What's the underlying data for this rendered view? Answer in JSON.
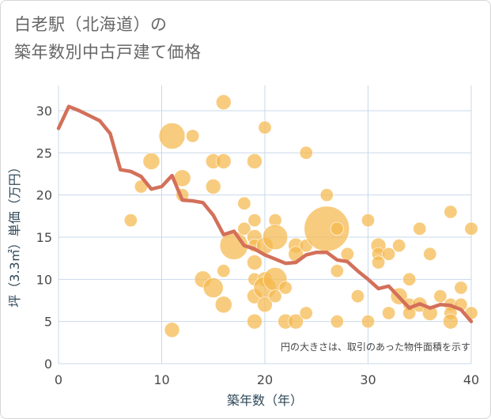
{
  "title_line1": "白老駅（北海道）の",
  "title_line2": "築年数別中古戸建て価格",
  "chart_data": {
    "type": "scatter",
    "title": "白老駅（北海道）の築年数別中古戸建て価格",
    "xlabel": "築年数（年）",
    "ylabel": "坪（3.3㎡）単価（万円）",
    "xlim": [
      0,
      40
    ],
    "ylim": [
      0,
      33
    ],
    "xticks": [
      0,
      10,
      20,
      30,
      40
    ],
    "yticks": [
      0,
      5,
      10,
      15,
      20,
      25,
      30
    ],
    "grid": true,
    "annotation": "円の大きさは、取引のあった物件面積を示す",
    "colors": {
      "bubble": "#f5b94d",
      "line": "#d3705a",
      "grid": "#c9d9ea"
    },
    "series": [
      {
        "name": "trend",
        "type": "line",
        "x": [
          0,
          1,
          2,
          3,
          4,
          5,
          6,
          7,
          8,
          9,
          10,
          11,
          12,
          13,
          14,
          15,
          16,
          17,
          18,
          19,
          20,
          21,
          22,
          23,
          24,
          25,
          26,
          27,
          28,
          29,
          30,
          31,
          32,
          33,
          34,
          35,
          36,
          37,
          38,
          39,
          40
        ],
        "y": [
          27.9,
          30.5,
          30.0,
          29.4,
          28.8,
          27.3,
          23.0,
          22.8,
          22.2,
          20.7,
          21.0,
          22.3,
          19.4,
          19.3,
          19.1,
          17.6,
          15.3,
          15.7,
          14.0,
          13.6,
          12.9,
          12.4,
          11.9,
          12.0,
          12.9,
          13.2,
          13.2,
          12.3,
          12.1,
          11.0,
          10.0,
          8.9,
          9.2,
          7.9,
          6.6,
          7.1,
          6.6,
          7.0,
          6.9,
          6.4,
          5.0
        ]
      },
      {
        "name": "transactions",
        "type": "scatter",
        "points": [
          {
            "x": 7,
            "y": 17,
            "s": 3
          },
          {
            "x": 8,
            "y": 21,
            "s": 3
          },
          {
            "x": 9,
            "y": 24,
            "s": 5
          },
          {
            "x": 11,
            "y": 27,
            "s": 12
          },
          {
            "x": 11,
            "y": 4,
            "s": 4
          },
          {
            "x": 12,
            "y": 22,
            "s": 5
          },
          {
            "x": 12,
            "y": 20,
            "s": 3
          },
          {
            "x": 13,
            "y": 27,
            "s": 3
          },
          {
            "x": 14,
            "y": 10,
            "s": 5
          },
          {
            "x": 15,
            "y": 24,
            "s": 4
          },
          {
            "x": 15,
            "y": 21,
            "s": 4
          },
          {
            "x": 15,
            "y": 9,
            "s": 7
          },
          {
            "x": 16,
            "y": 31,
            "s": 4
          },
          {
            "x": 16,
            "y": 24,
            "s": 4
          },
          {
            "x": 16,
            "y": 11,
            "s": 3
          },
          {
            "x": 16,
            "y": 7,
            "s": 5
          },
          {
            "x": 17,
            "y": 14,
            "s": 14
          },
          {
            "x": 18,
            "y": 19,
            "s": 3
          },
          {
            "x": 18,
            "y": 16,
            "s": 3
          },
          {
            "x": 19,
            "y": 24,
            "s": 4
          },
          {
            "x": 19,
            "y": 17,
            "s": 3
          },
          {
            "x": 19,
            "y": 15,
            "s": 4
          },
          {
            "x": 19,
            "y": 14,
            "s": 3
          },
          {
            "x": 19,
            "y": 12,
            "s": 4
          },
          {
            "x": 19,
            "y": 10,
            "s": 3
          },
          {
            "x": 19,
            "y": 8,
            "s": 4
          },
          {
            "x": 19,
            "y": 5,
            "s": 4
          },
          {
            "x": 20,
            "y": 28,
            "s": 3
          },
          {
            "x": 20,
            "y": 14,
            "s": 5
          },
          {
            "x": 20,
            "y": 10,
            "s": 4
          },
          {
            "x": 20,
            "y": 9,
            "s": 9
          },
          {
            "x": 20,
            "y": 7,
            "s": 4
          },
          {
            "x": 21,
            "y": 17,
            "s": 3
          },
          {
            "x": 21,
            "y": 15,
            "s": 11
          },
          {
            "x": 21,
            "y": 10,
            "s": 10
          },
          {
            "x": 21,
            "y": 8,
            "s": 3
          },
          {
            "x": 22,
            "y": 9,
            "s": 3
          },
          {
            "x": 22,
            "y": 5,
            "s": 4
          },
          {
            "x": 23,
            "y": 14,
            "s": 4
          },
          {
            "x": 23,
            "y": 13,
            "s": 4
          },
          {
            "x": 23,
            "y": 5,
            "s": 4
          },
          {
            "x": 24,
            "y": 25,
            "s": 3
          },
          {
            "x": 24,
            "y": 14,
            "s": 3
          },
          {
            "x": 24,
            "y": 6,
            "s": 3
          },
          {
            "x": 26,
            "y": 16,
            "s": 36
          },
          {
            "x": 26,
            "y": 20,
            "s": 3
          },
          {
            "x": 27,
            "y": 16,
            "s": 3
          },
          {
            "x": 27,
            "y": 11,
            "s": 3
          },
          {
            "x": 27,
            "y": 5,
            "s": 3
          },
          {
            "x": 28,
            "y": 13,
            "s": 3
          },
          {
            "x": 29,
            "y": 8,
            "s": 3
          },
          {
            "x": 30,
            "y": 17,
            "s": 3
          },
          {
            "x": 30,
            "y": 5,
            "s": 3
          },
          {
            "x": 31,
            "y": 14,
            "s": 4
          },
          {
            "x": 31,
            "y": 13,
            "s": 3
          },
          {
            "x": 31,
            "y": 12,
            "s": 3
          },
          {
            "x": 32,
            "y": 13,
            "s": 3
          },
          {
            "x": 32,
            "y": 6,
            "s": 3
          },
          {
            "x": 33,
            "y": 14,
            "s": 3
          },
          {
            "x": 33,
            "y": 8,
            "s": 5
          },
          {
            "x": 34,
            "y": 10,
            "s": 3
          },
          {
            "x": 34,
            "y": 7,
            "s": 3
          },
          {
            "x": 34,
            "y": 6,
            "s": 3
          },
          {
            "x": 35,
            "y": 16,
            "s": 3
          },
          {
            "x": 35,
            "y": 7,
            "s": 4
          },
          {
            "x": 36,
            "y": 13,
            "s": 3
          },
          {
            "x": 36,
            "y": 6,
            "s": 4
          },
          {
            "x": 37,
            "y": 8,
            "s": 3
          },
          {
            "x": 38,
            "y": 18,
            "s": 3
          },
          {
            "x": 38,
            "y": 7,
            "s": 3
          },
          {
            "x": 38,
            "y": 6,
            "s": 3
          },
          {
            "x": 38,
            "y": 5,
            "s": 4
          },
          {
            "x": 39,
            "y": 9,
            "s": 3
          },
          {
            "x": 39,
            "y": 7,
            "s": 3
          },
          {
            "x": 40,
            "y": 16,
            "s": 3
          },
          {
            "x": 40,
            "y": 6,
            "s": 3
          }
        ]
      }
    ]
  }
}
